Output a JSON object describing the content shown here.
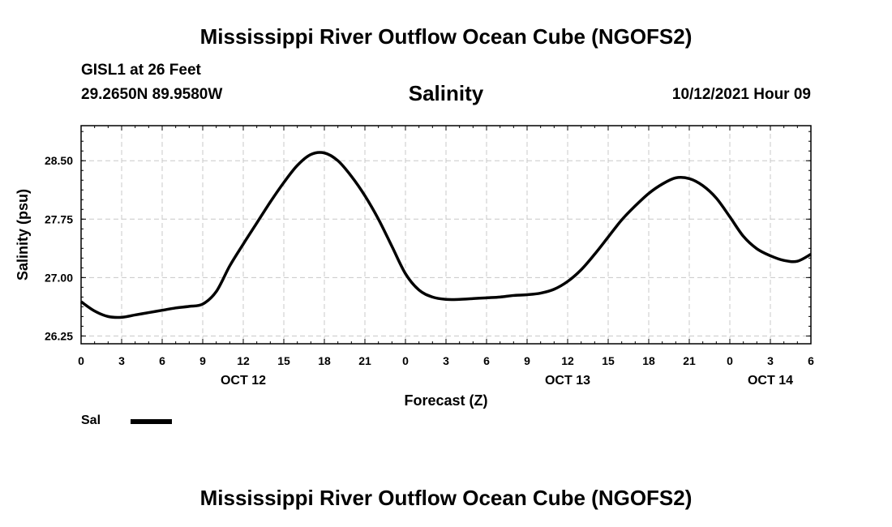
{
  "header": {
    "title": "Mississippi River Outflow Ocean Cube (NGOFS2)",
    "station": "GISL1 at 26 Feet",
    "coords": "29.2650N  89.9580W",
    "variable": "Salinity",
    "datetime": "10/12/2021 Hour 09"
  },
  "footer": {
    "title": "Mississippi River Outflow Ocean Cube (NGOFS2)"
  },
  "chart_data": {
    "type": "line",
    "title": "Salinity",
    "xlabel": "Forecast (Z)",
    "ylabel": "Salinity (psu)",
    "xlim": [
      0,
      54
    ],
    "ylim": [
      26.15,
      28.95
    ],
    "grid": true,
    "x_ticks": [
      0,
      3,
      6,
      9,
      12,
      15,
      18,
      21,
      24,
      27,
      30,
      33,
      36,
      39,
      42,
      45,
      48,
      51,
      54
    ],
    "x_tick_labels": [
      "0",
      "3",
      "6",
      "9",
      "12",
      "15",
      "18",
      "21",
      "0",
      "3",
      "6",
      "9",
      "12",
      "15",
      "18",
      "21",
      "0",
      "3",
      "6"
    ],
    "date_labels": [
      {
        "hour": 12,
        "label": "OCT 12"
      },
      {
        "hour": 36,
        "label": "OCT 13"
      },
      {
        "hour": 51,
        "label": "OCT 14"
      }
    ],
    "y_ticks": [
      26.25,
      27.0,
      27.75,
      28.5
    ],
    "y_tick_labels": [
      "26.25",
      "27.00",
      "27.75",
      "28.50"
    ],
    "legend": [
      {
        "name": "Sal",
        "color": "#000000",
        "position": "bottom-left"
      }
    ],
    "series": [
      {
        "name": "Sal",
        "x": [
          0,
          1,
          2,
          3,
          4,
          5,
          6,
          7,
          8,
          9,
          10,
          11,
          12,
          13,
          14,
          15,
          16,
          17,
          18,
          19,
          20,
          21,
          22,
          23,
          24,
          25,
          26,
          27,
          28,
          29,
          30,
          31,
          32,
          33,
          34,
          35,
          36,
          37,
          38,
          39,
          40,
          41,
          42,
          43,
          44,
          45,
          46,
          47,
          48,
          49,
          50,
          51,
          52,
          53,
          54
        ],
        "y": [
          26.69,
          26.57,
          26.5,
          26.49,
          26.52,
          26.55,
          26.58,
          26.61,
          26.63,
          26.66,
          26.82,
          27.15,
          27.43,
          27.7,
          27.97,
          28.22,
          28.44,
          28.58,
          28.6,
          28.5,
          28.3,
          28.05,
          27.75,
          27.4,
          27.05,
          26.84,
          26.75,
          26.72,
          26.72,
          26.73,
          26.74,
          26.75,
          26.77,
          26.78,
          26.8,
          26.85,
          26.95,
          27.1,
          27.3,
          27.52,
          27.74,
          27.92,
          28.08,
          28.2,
          28.28,
          28.27,
          28.18,
          28.02,
          27.78,
          27.53,
          27.37,
          27.28,
          27.22,
          27.21,
          27.3
        ]
      }
    ]
  }
}
